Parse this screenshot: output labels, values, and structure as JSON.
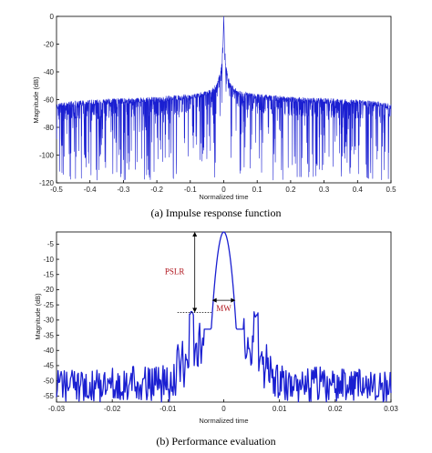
{
  "chart_data": [
    {
      "type": "line",
      "caption": "(a) Impulse response function",
      "xlabel": "Normalized time",
      "ylabel": "Magnitude (dB)",
      "xlim": [
        -0.5,
        0.5
      ],
      "ylim": [
        -120,
        0
      ],
      "xticks": [
        -0.5,
        -0.4,
        -0.3,
        -0.2,
        -0.1,
        0,
        0.1,
        0.2,
        0.3,
        0.4,
        0.5
      ],
      "xtick_labels": [
        "-0.5",
        "-0.4",
        "-0.3",
        "-0.2",
        "-0.1",
        "0",
        "0.1",
        "0.2",
        "0.3",
        "0.4",
        "0.5"
      ],
      "yticks": [
        0,
        -20,
        -40,
        -60,
        -80,
        -100,
        -120
      ],
      "ytick_labels": [
        "0",
        "-20",
        "-40",
        "-60",
        "-80",
        "-100",
        "-120"
      ],
      "grid": false,
      "series_color": "#1a1fd1",
      "envelope": {
        "x": [
          0,
          0.005,
          0.01,
          0.02,
          0.04,
          0.06,
          0.1,
          0.15,
          0.2,
          0.3,
          0.4,
          0.45,
          0.5
        ],
        "y": [
          0,
          -30,
          -40,
          -48,
          -53,
          -54,
          -56,
          -57,
          -58,
          -59,
          -60,
          -61,
          -63
        ]
      },
      "notch_depth_range": [
        -75,
        -120
      ]
    },
    {
      "type": "line",
      "caption": "(b) Performance evaluation",
      "xlabel": "Normalized time",
      "ylabel": "Magnitude (dB)",
      "xlim": [
        -0.03,
        0.03
      ],
      "ylim": [
        -57,
        -1
      ],
      "xticks": [
        -0.03,
        -0.02,
        -0.01,
        0,
        0.01,
        0.02,
        0.03
      ],
      "xtick_labels": [
        "-0.03",
        "-0.02",
        "-0.01",
        "0",
        "0.01",
        "0.02",
        "0.03"
      ],
      "yticks": [
        -5,
        -10,
        -15,
        -20,
        -25,
        -30,
        -35,
        -40,
        -45,
        -50,
        -55
      ],
      "ytick_labels": [
        "-5",
        "-10",
        "-15",
        "-20",
        "-25",
        "-30",
        "-35",
        "-40",
        "-45",
        "-50",
        "-55"
      ],
      "grid": false,
      "series_color": "#1a1fd1",
      "peak_db": -1,
      "sidelobe_db": -27.5,
      "mainlobe_halfwidth": 0.0021,
      "annotations": {
        "pslr_label": "PSLR",
        "mw_label": "MW"
      }
    }
  ]
}
